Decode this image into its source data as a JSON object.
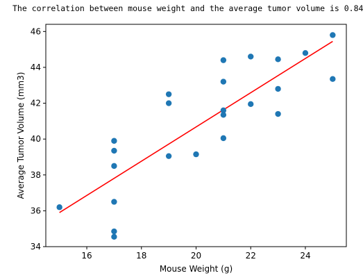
{
  "output": {
    "text": "The correlation between mouse weight and the average tumor volume is 0.84"
  },
  "chart_data": {
    "type": "scatter",
    "title": "",
    "xlabel": "Mouse Weight (g)",
    "ylabel": "Average Tumor Volume (mm3)",
    "xlim": [
      14.5,
      25.5
    ],
    "ylim": [
      34,
      46.4
    ],
    "xticks": [
      16,
      18,
      20,
      22,
      24
    ],
    "yticks": [
      34,
      36,
      38,
      40,
      42,
      44,
      46
    ],
    "grid": false,
    "points": [
      {
        "x": 15,
        "y": 36.2
      },
      {
        "x": 17,
        "y": 34.55
      },
      {
        "x": 17,
        "y": 34.85
      },
      {
        "x": 17,
        "y": 36.5
      },
      {
        "x": 17,
        "y": 38.5
      },
      {
        "x": 17,
        "y": 39.35
      },
      {
        "x": 17,
        "y": 39.9
      },
      {
        "x": 19,
        "y": 39.05
      },
      {
        "x": 19,
        "y": 42.0
      },
      {
        "x": 19,
        "y": 42.5
      },
      {
        "x": 20,
        "y": 39.15
      },
      {
        "x": 21,
        "y": 40.05
      },
      {
        "x": 21,
        "y": 41.35
      },
      {
        "x": 21,
        "y": 41.6
      },
      {
        "x": 21,
        "y": 43.2
      },
      {
        "x": 21,
        "y": 44.4
      },
      {
        "x": 22,
        "y": 41.95
      },
      {
        "x": 22,
        "y": 44.6
      },
      {
        "x": 23,
        "y": 41.4
      },
      {
        "x": 23,
        "y": 42.8
      },
      {
        "x": 23,
        "y": 44.45
      },
      {
        "x": 24,
        "y": 44.8
      },
      {
        "x": 25,
        "y": 43.35
      },
      {
        "x": 25,
        "y": 45.8
      }
    ],
    "regression": {
      "x": [
        15,
        25
      ],
      "y": [
        35.9,
        45.45
      ]
    },
    "colors": {
      "points": "#1f77b4",
      "line": "#ff0000"
    }
  }
}
